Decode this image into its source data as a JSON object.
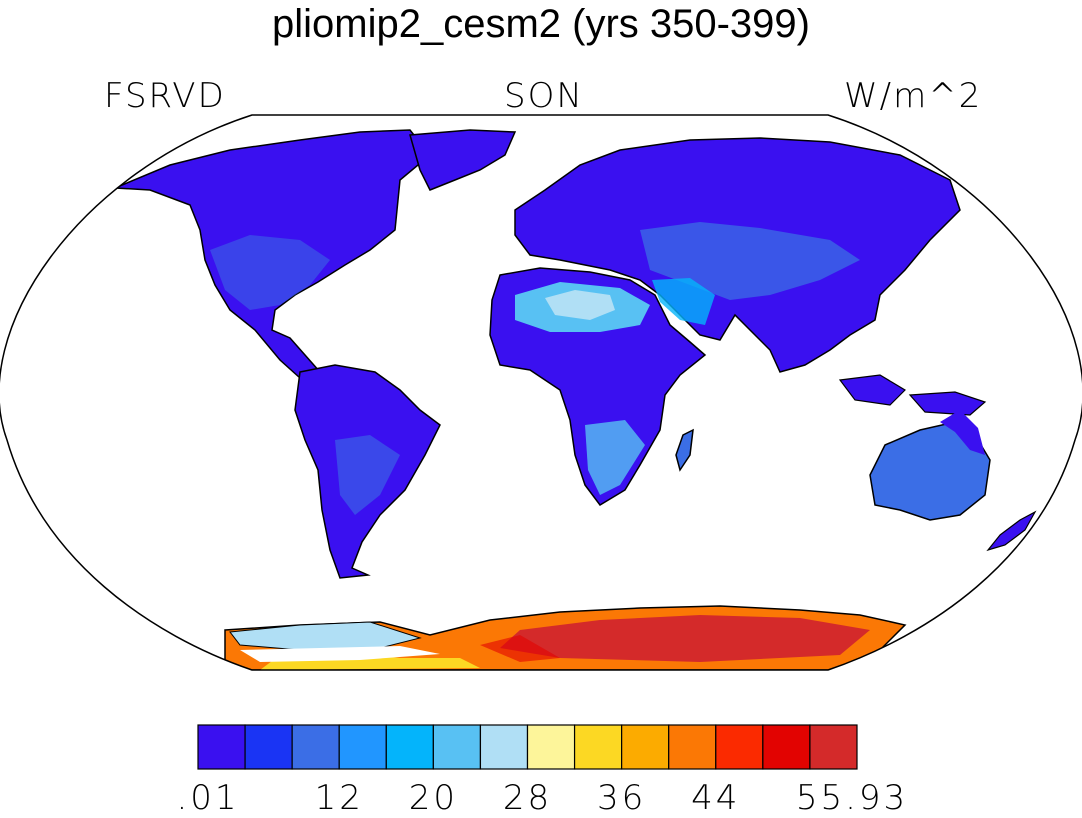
{
  "title": "pliomip2_cesm2 (yrs 350-399)",
  "left_label": "FSRVD",
  "center_label": "SON",
  "right_label": "W/m^2",
  "colorbar": {
    "colors": [
      "#3a10f0",
      "#1a34f4",
      "#3b6ee6",
      "#2196ff",
      "#04b4fb",
      "#58c1f3",
      "#b0dff5",
      "#fdf59a",
      "#fcd823",
      "#fcab00",
      "#fb7805",
      "#fb2a00",
      "#e20301",
      "#d42a2a"
    ],
    "tick_labels": [
      {
        "label": ".01",
        "boundary": 0
      },
      {
        "label": "12",
        "boundary": 3
      },
      {
        "label": "20",
        "boundary": 5
      },
      {
        "label": "28",
        "boundary": 7
      },
      {
        "label": "36",
        "boundary": 9
      },
      {
        "label": "44",
        "boundary": 11
      },
      {
        "label": "55.93",
        "boundary": 14
      }
    ]
  }
}
